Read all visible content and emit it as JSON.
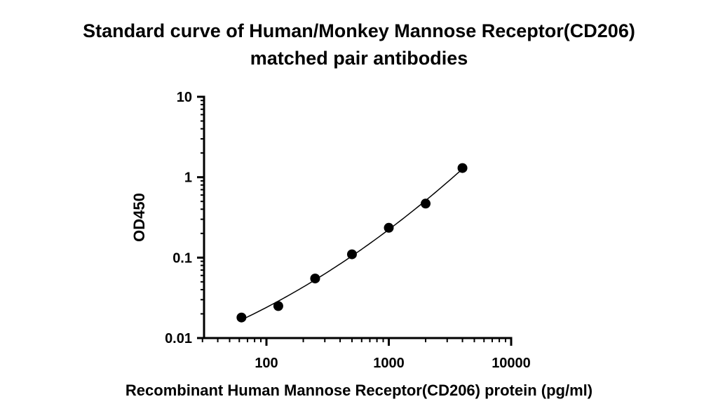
{
  "chart_data": {
    "type": "scatter",
    "title_line1": "Standard curve of Human/Monkey Mannose Receptor(CD206)",
    "title_line2": "matched pair antibodies",
    "xlabel": "Recombinant Human Mannose Receptor(CD206) protein (pg/ml)",
    "ylabel": "OD450",
    "xscale": "log",
    "yscale": "log",
    "xlim": [
      30,
      10000
    ],
    "ylim": [
      0.01,
      10
    ],
    "x_tick_values": [
      100,
      1000,
      10000
    ],
    "x_tick_labels": [
      "100",
      "1000",
      "10000"
    ],
    "y_tick_values": [
      0.01,
      0.1,
      1,
      10
    ],
    "y_tick_labels": [
      "0.01",
      "0.1",
      "1",
      "10"
    ],
    "grid": false,
    "series": [
      {
        "x": [
          62.5,
          125,
          250,
          500,
          1000,
          2000,
          4000
        ],
        "y": [
          0.018,
          0.025,
          0.055,
          0.11,
          0.235,
          0.47,
          1.3
        ],
        "marker": "filled-circle",
        "color": "#000000",
        "fit_curve": true
      }
    ]
  }
}
